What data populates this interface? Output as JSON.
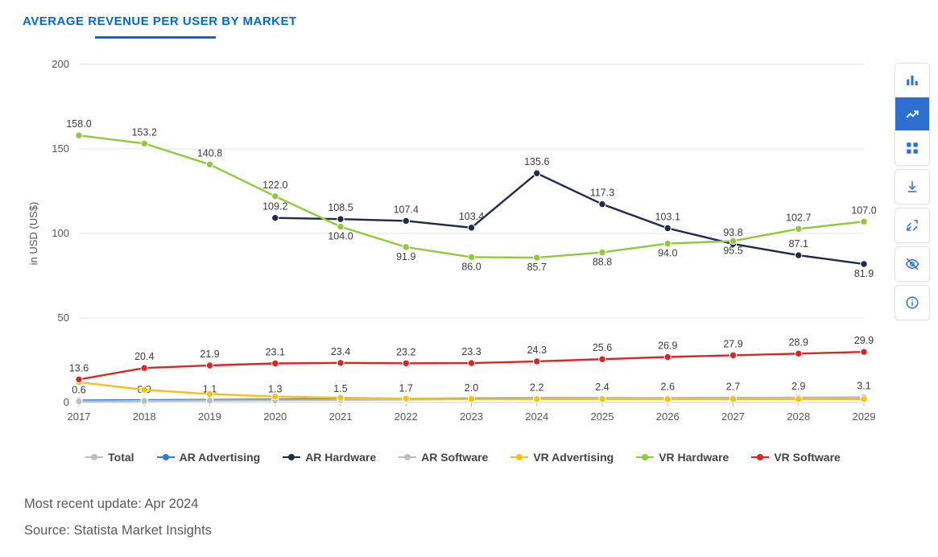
{
  "title": "AVERAGE REVENUE PER USER BY MARKET",
  "chart": {
    "type": "line",
    "ylabel": "in USD (US$)",
    "ylim": [
      0,
      200
    ],
    "ytick_step": 50,
    "categories": [
      "2017",
      "2018",
      "2019",
      "2020",
      "2021",
      "2022",
      "2023",
      "2024",
      "2025",
      "2026",
      "2027",
      "2028",
      "2029"
    ],
    "grid_color": "#e6e6e6",
    "background_color": "#ffffff",
    "axis_fontsize": 13,
    "datalabel_fontsize": 12.5,
    "marker_radius": 4.2,
    "line_width": 2.4,
    "series": [
      {
        "name": "Total",
        "color": "#bdbdbd",
        "show_line": false,
        "show_labels": false,
        "values": []
      },
      {
        "name": "AR Advertising",
        "color": "#2f7bd6",
        "show_line": true,
        "show_labels": false,
        "values": [
          1.2,
          1.4,
          1.6,
          1.8,
          2.0,
          2.2,
          2.4,
          2.5,
          2.6,
          2.6,
          2.7,
          2.8,
          2.9
        ]
      },
      {
        "name": "AR Hardware",
        "color": "#1e2a4a",
        "show_line": true,
        "show_labels": true,
        "label_offset": "above",
        "values": [
          null,
          null,
          null,
          109.2,
          108.5,
          107.4,
          103.4,
          135.6,
          117.3,
          103.1,
          93.8,
          87.1,
          81.9
        ]
      },
      {
        "name": "AR Software",
        "color": "#bdbdbd",
        "show_line": true,
        "show_labels": true,
        "label_offset": "above",
        "values": [
          0.6,
          0.9,
          1.1,
          1.3,
          1.5,
          1.7,
          2.0,
          2.2,
          2.4,
          2.6,
          2.7,
          2.9,
          3.1
        ]
      },
      {
        "name": "VR Advertising",
        "color": "#f3c11b",
        "show_line": true,
        "show_labels": false,
        "values": [
          12.0,
          7.5,
          5.0,
          3.5,
          2.8,
          2.3,
          2.1,
          2.0,
          2.0,
          2.0,
          2.0,
          2.0,
          2.0
        ]
      },
      {
        "name": "VR Hardware",
        "color": "#92c83e",
        "show_line": true,
        "show_labels": true,
        "label_offset": "mixed",
        "values": [
          158.0,
          153.2,
          140.8,
          122.0,
          104.0,
          91.9,
          86.0,
          85.7,
          88.8,
          94.0,
          95.5,
          102.7,
          107.0
        ]
      },
      {
        "name": "VR Software",
        "color": "#d62728",
        "show_line": true,
        "show_labels": true,
        "label_offset": "above",
        "values": [
          13.6,
          20.4,
          21.9,
          23.1,
          23.4,
          23.2,
          23.3,
          24.3,
          25.6,
          26.9,
          27.9,
          28.9,
          29.9
        ]
      }
    ]
  },
  "footer": {
    "update": "Most recent update: Apr 2024",
    "source": "Source: Statista Market Insights"
  },
  "toolbar": {
    "groups": [
      [
        "bar-chart-icon",
        "line-chart-icon",
        "grid-icon"
      ],
      [
        "download-icon"
      ],
      [
        "fullscreen-icon"
      ],
      [
        "eye-off-icon"
      ],
      [
        "info-icon"
      ]
    ],
    "active": "line-chart-icon"
  }
}
